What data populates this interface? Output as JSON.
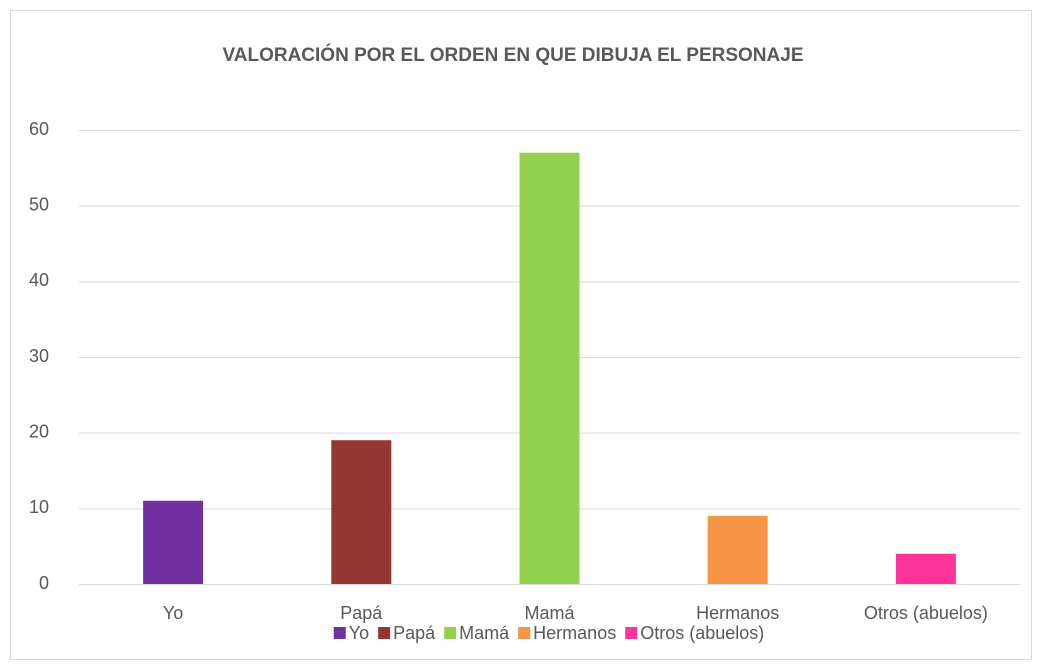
{
  "chart_data": {
    "type": "bar",
    "title": "VALORACIÓN POR EL ORDEN EN QUE DIBUJA EL PERSONAJE",
    "categories": [
      "Yo",
      "Papá",
      "Mamá",
      "Hermanos",
      "Otros (abuelos)"
    ],
    "values": [
      11,
      19,
      57,
      9,
      4
    ],
    "colors": [
      "#7030a0",
      "#943634",
      "#92d050",
      "#f79646",
      "#ff3399"
    ],
    "ylim": [
      0,
      60
    ],
    "yticks": [
      0,
      10,
      20,
      30,
      40,
      50,
      60
    ],
    "grid": true,
    "legend": "bottom"
  }
}
